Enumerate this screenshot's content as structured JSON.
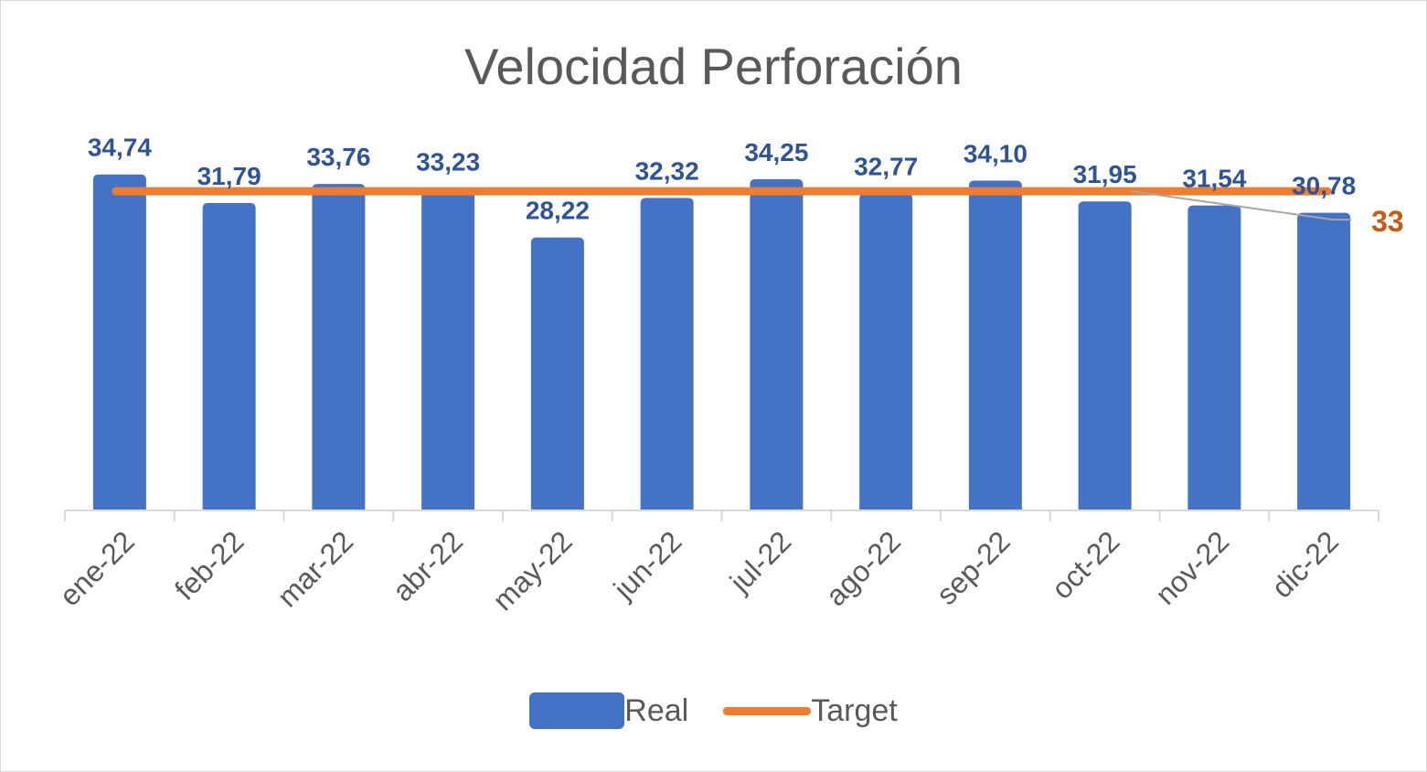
{
  "chart_data": {
    "type": "bar",
    "title": "Velocidad Perforación",
    "categories": [
      "ene-22",
      "feb-22",
      "mar-22",
      "abr-22",
      "may-22",
      "jun-22",
      "jul-22",
      "ago-22",
      "sep-22",
      "oct-22",
      "nov-22",
      "dic-22"
    ],
    "series": [
      {
        "name": "Real",
        "type": "bar",
        "color": "#4472c4",
        "values": [
          34.74,
          31.79,
          33.76,
          33.23,
          28.22,
          32.32,
          34.25,
          32.77,
          34.1,
          31.95,
          31.54,
          30.78
        ],
        "labels": [
          "34,74",
          "31,79",
          "33,76",
          "33,23",
          "28,22",
          "32,32",
          "34,25",
          "32,77",
          "34,10",
          "31,95",
          "31,54",
          "30,78"
        ]
      },
      {
        "name": "Target",
        "type": "line",
        "color": "#ed7d31",
        "values": [
          33,
          33,
          33,
          33,
          33,
          33,
          33,
          33,
          33,
          33,
          33,
          33
        ],
        "end_label": "33"
      }
    ],
    "ylim": [
      0,
      35
    ],
    "grid": false,
    "legend_position": "bottom",
    "xlabel": "",
    "ylabel": ""
  }
}
